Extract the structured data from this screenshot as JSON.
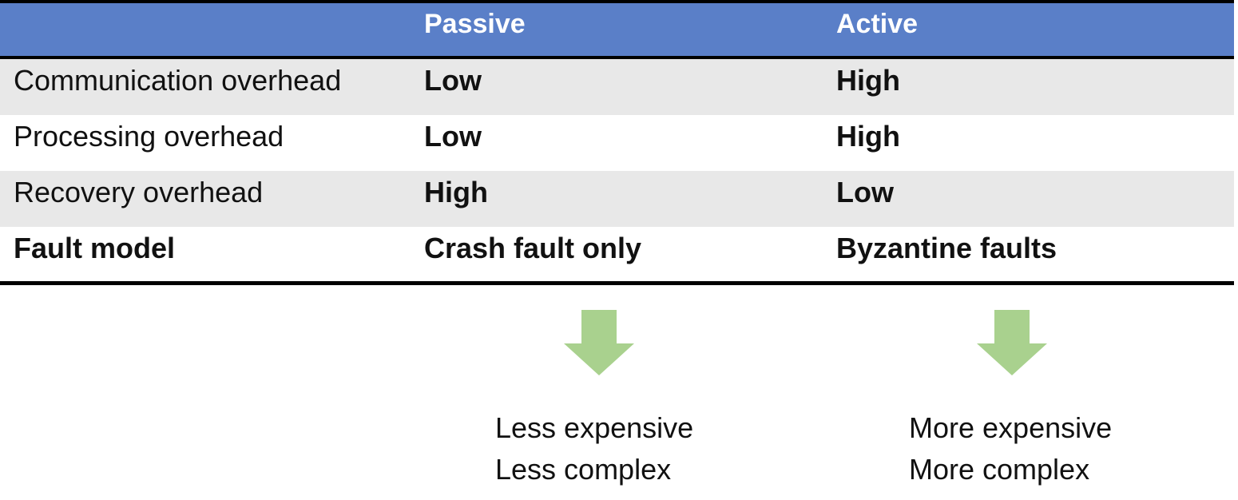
{
  "table": {
    "headers": [
      "",
      "Passive",
      "Active"
    ],
    "rows": [
      {
        "label": "Communication overhead",
        "passive": "Low",
        "active": "High",
        "label_bold": false
      },
      {
        "label": "Processing overhead",
        "passive": "Low",
        "active": "High",
        "label_bold": false
      },
      {
        "label": "Recovery overhead",
        "passive": "High",
        "active": "Low",
        "label_bold": false
      },
      {
        "label": "Fault model",
        "passive": "Crash fault only",
        "active": "Byzantine faults",
        "label_bold": true
      }
    ]
  },
  "passive_summary": {
    "line1": "Less expensive",
    "line2": "Less complex"
  },
  "active_summary": {
    "line1": "More expensive",
    "line2": "More complex"
  },
  "colors": {
    "header_bg": "#5a7fc8",
    "row_shade": "#e8e8e8",
    "arrow": "#a9d18e"
  },
  "icons": {
    "passive_arrow": "down-arrow-icon",
    "active_arrow": "down-arrow-icon"
  }
}
